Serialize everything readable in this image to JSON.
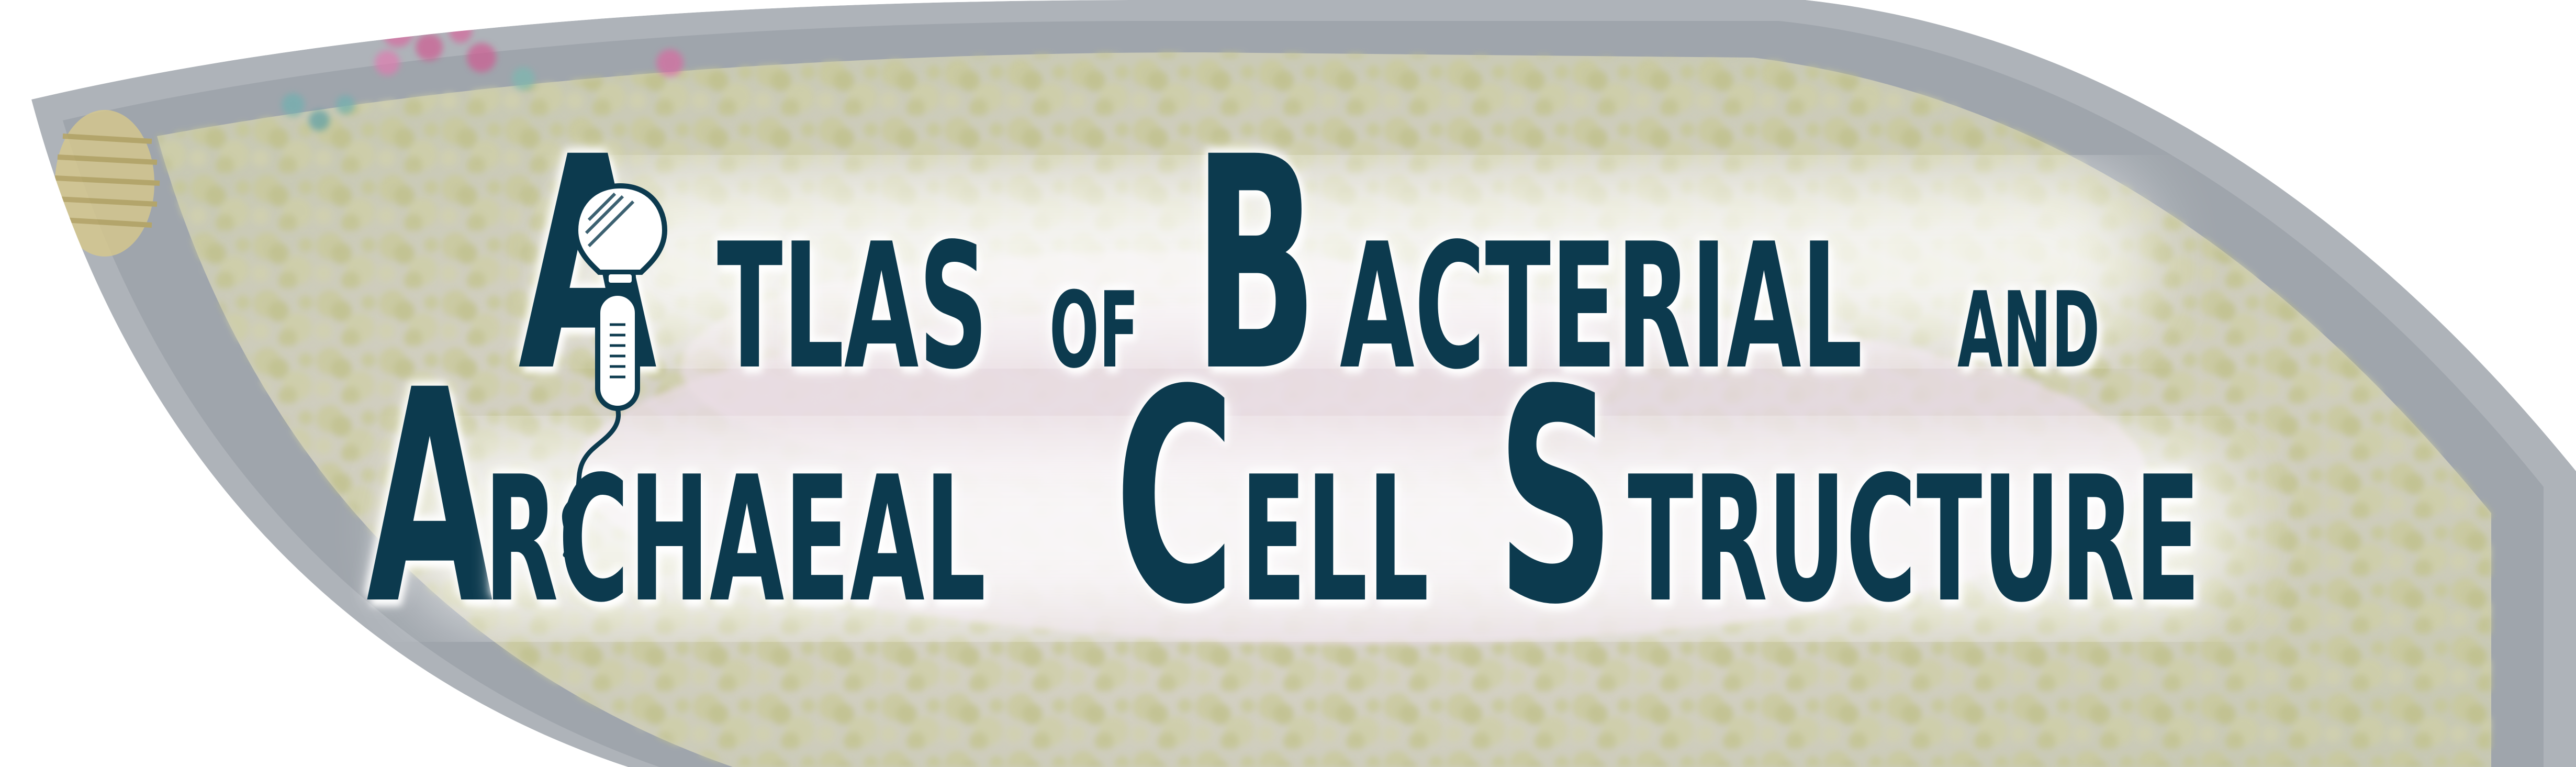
{
  "title": {
    "line1": [
      {
        "cap": "A",
        "rest": "TLAS"
      },
      {
        "cap": "",
        "rest": "OF"
      },
      {
        "cap": "B",
        "rest": "ACTERIAL"
      },
      {
        "cap": "",
        "rest": "AND"
      }
    ],
    "line2": [
      {
        "cap": "A",
        "rest": "RCHAEAL"
      },
      {
        "cap": "C",
        "rest": "ELL"
      },
      {
        "cap": "S",
        "rest": "TRUCTURE"
      }
    ]
  },
  "colors": {
    "title_text": "#0c3a4e",
    "cell_envelope": "#3f4a55",
    "cytoplasm": "#d9d4c2",
    "ribosome_clusters": "#c8c98a",
    "nucleoid": "#c4a7b8",
    "background": "#ffffff"
  },
  "icons": [
    "bacterial-cell-illustration",
    "flagellum-icon",
    "cell-lightbulb-icon"
  ]
}
